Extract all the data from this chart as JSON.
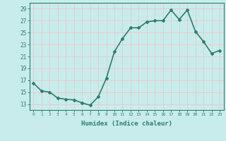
{
  "x": [
    0,
    1,
    2,
    3,
    4,
    5,
    6,
    7,
    8,
    9,
    10,
    11,
    12,
    13,
    14,
    15,
    16,
    17,
    18,
    19,
    20,
    21,
    22,
    23
  ],
  "y": [
    16.5,
    15.2,
    15.0,
    14.0,
    13.8,
    13.7,
    13.2,
    12.8,
    14.2,
    17.3,
    21.8,
    24.0,
    25.8,
    25.8,
    26.8,
    27.0,
    27.0,
    28.8,
    27.2,
    28.8,
    25.2,
    23.5,
    21.5,
    22.0
  ],
  "line_color": "#2d7d6e",
  "marker": "D",
  "marker_size": 2.0,
  "bg_color": "#c8ecec",
  "grid_color": "#e8c8c8",
  "xlabel": "Humidex (Indice chaleur)",
  "xlim": [
    -0.5,
    23.5
  ],
  "ylim": [
    12,
    30
  ],
  "yticks": [
    13,
    15,
    17,
    19,
    21,
    23,
    25,
    27,
    29
  ],
  "xticks": [
    0,
    1,
    2,
    3,
    4,
    5,
    6,
    7,
    8,
    9,
    10,
    11,
    12,
    13,
    14,
    15,
    16,
    17,
    18,
    19,
    20,
    21,
    22,
    23
  ],
  "xtick_labels": [
    "0",
    "1",
    "2",
    "3",
    "4",
    "5",
    "6",
    "7",
    "8",
    "9",
    "10",
    "11",
    "12",
    "13",
    "14",
    "15",
    "16",
    "17",
    "18",
    "19",
    "20",
    "21",
    "22",
    "23"
  ],
  "axis_color": "#2d7d6e",
  "tick_color": "#2d7d6e",
  "label_color": "#2d7d6e",
  "linewidth": 1.2
}
